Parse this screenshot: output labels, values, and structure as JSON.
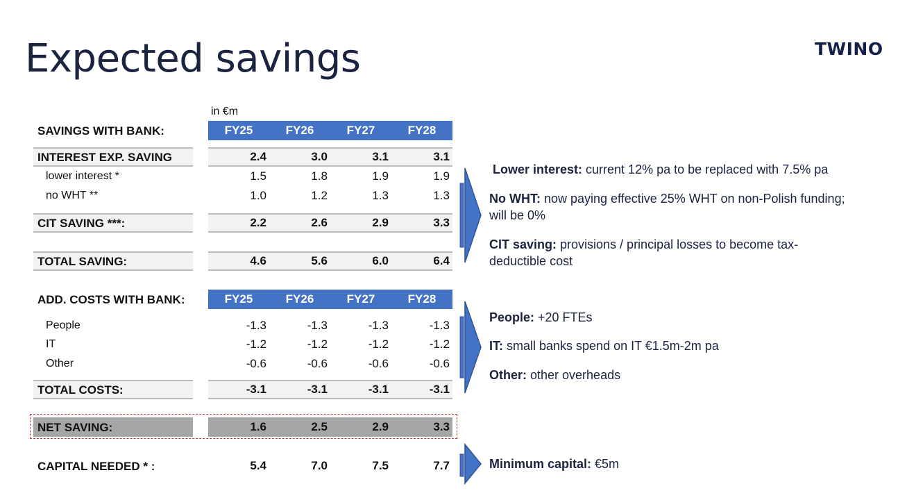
{
  "page": {
    "title": "Expected savings",
    "logo_text": "TWINO",
    "unit": "in €m",
    "accent_color": "#4472c4"
  },
  "savings_section": {
    "header": "SAVINGS WITH BANK:",
    "years": [
      "FY25",
      "FY26",
      "FY27",
      "FY28"
    ],
    "rows": [
      {
        "label": "INTEREST EXP. SAVING",
        "values": [
          "2.4",
          "3.0",
          "3.1",
          "3.1"
        ],
        "style": "boxed-bold"
      },
      {
        "label": "lower interest *",
        "values": [
          "1.5",
          "1.8",
          "1.9",
          "1.9"
        ],
        "style": "sub"
      },
      {
        "label": "no WHT **",
        "values": [
          "1.0",
          "1.2",
          "1.3",
          "1.3"
        ],
        "style": "sub"
      },
      {
        "label": "CIT SAVING ***:",
        "values": [
          "2.2",
          "2.6",
          "2.9",
          "3.3"
        ],
        "style": "boxed-bold"
      },
      {
        "label": "TOTAL SAVING:",
        "values": [
          "4.6",
          "5.6",
          "6.0",
          "6.4"
        ],
        "style": "boxed-bold"
      }
    ]
  },
  "costs_section": {
    "header": "ADD. COSTS WITH BANK:",
    "years": [
      "FY25",
      "FY26",
      "FY27",
      "FY28"
    ],
    "rows": [
      {
        "label": "People",
        "values": [
          "-1.3",
          "-1.3",
          "-1.3",
          "-1.3"
        ],
        "style": "sub"
      },
      {
        "label": "IT",
        "values": [
          "-1.2",
          "-1.2",
          "-1.2",
          "-1.2"
        ],
        "style": "sub"
      },
      {
        "label": "Other",
        "values": [
          "-0.6",
          "-0.6",
          "-0.6",
          "-0.6"
        ],
        "style": "sub"
      },
      {
        "label": "TOTAL COSTS:",
        "values": [
          "-3.1",
          "-3.1",
          "-3.1",
          "-3.1"
        ],
        "style": "boxed-bold"
      }
    ]
  },
  "net_saving": {
    "label": "NET SAVING:",
    "values": [
      "1.6",
      "2.5",
      "2.9",
      "3.3"
    ]
  },
  "capital_needed": {
    "label": "CAPITAL NEEDED * :",
    "values": [
      "5.4",
      "7.0",
      "7.5",
      "7.7"
    ]
  },
  "notes": {
    "savings": [
      {
        "bold": "Lower interest:",
        "text": " current 12% pa to be replaced with 7.5% pa"
      },
      {
        "bold": "No WHT:",
        "text": " now paying effective 25% WHT on non-Polish funding; will be 0%"
      },
      {
        "bold": "CIT saving:",
        "text": " provisions / principal losses to become tax-deductible cost"
      }
    ],
    "costs": [
      {
        "bold": "People:",
        "text": " +20 FTEs"
      },
      {
        "bold": "IT:",
        "text": " small banks spend on IT €1.5m-2m pa"
      },
      {
        "bold": "Other:",
        "text": " other overheads"
      }
    ],
    "capital": [
      {
        "bold": "Minimum capital:",
        "text": " €5m"
      }
    ]
  }
}
